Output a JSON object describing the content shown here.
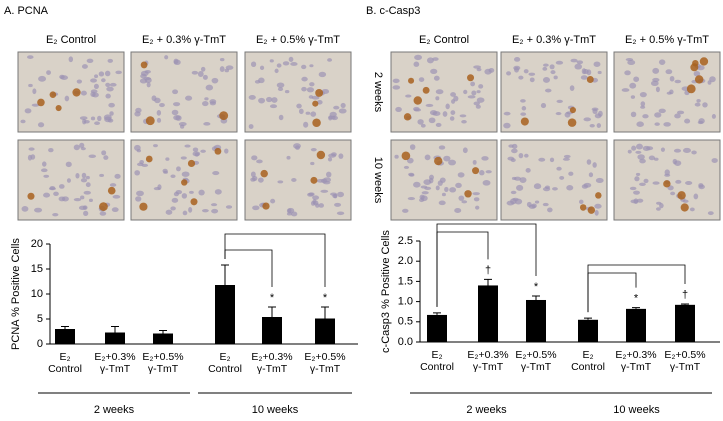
{
  "panels": [
    {
      "title": "A. PCNA",
      "columns": [
        "E₂ Control",
        "E₂ + 0.3% γ-TmT",
        "E₂ + 0.5% γ-TmT"
      ]
    },
    {
      "title": "B. c-Casp3",
      "columns": [
        "E₂ Control",
        "E₂ + 0.3% γ-TmT",
        "E₂ + 0.5% γ-TmT"
      ],
      "rows": [
        "2 weeks",
        "10 weeks"
      ]
    }
  ],
  "chart_data": [
    {
      "type": "bar",
      "ylabel": "PCNA %  Positive Cells",
      "categories": [
        "E₂\nControl",
        "E₂+0.3%\nγ-TmT",
        "E₂+0.5%\nγ-TmT",
        "E₂\nControl",
        "E₂+0.3%\nγ-TmT",
        "E₂+0.5%\nγ-TmT"
      ],
      "groups": [
        "2 weeks",
        "10 weeks"
      ],
      "series": [
        {
          "color": "#000000",
          "values": [
            3.0,
            2.3,
            2.1,
            11.8,
            5.4,
            5.1
          ],
          "errors": [
            0.5,
            1.2,
            0.6,
            4.0,
            2.0,
            2.3
          ]
        }
      ],
      "annotations": [
        null,
        null,
        null,
        null,
        "*",
        "*"
      ],
      "ylim": [
        0,
        20
      ],
      "yticks": [
        0,
        5,
        10,
        15,
        20
      ]
    },
    {
      "type": "bar",
      "ylabel": "c-Casp3 %  Positive Cells",
      "categories": [
        "E₂\nControl",
        "E₂+0.3%\nγ-TmT",
        "E₂+0.5%\nγ-TmT",
        "E₂\nControl",
        "E₂+0.3%\nγ-TmT",
        "E₂+0.5%\nγ-TmT"
      ],
      "groups": [
        "2 weeks",
        "10 weeks"
      ],
      "series": [
        {
          "color": "#000000",
          "values": [
            0.67,
            1.4,
            1.04,
            0.55,
            0.82,
            0.92
          ],
          "errors": [
            0.05,
            0.15,
            0.1,
            0.04,
            0.03,
            0.02
          ]
        }
      ],
      "annotations": [
        null,
        "†",
        "*",
        null,
        "*",
        "†"
      ],
      "ylim": [
        0,
        2.5
      ],
      "yticks": [
        {
          "value": 0,
          "label": "0.0"
        },
        0.5,
        {
          "value": 1,
          "label": "1.0"
        },
        1.5,
        {
          "value": 2,
          "label": "2.0"
        },
        2.5
      ]
    }
  ]
}
